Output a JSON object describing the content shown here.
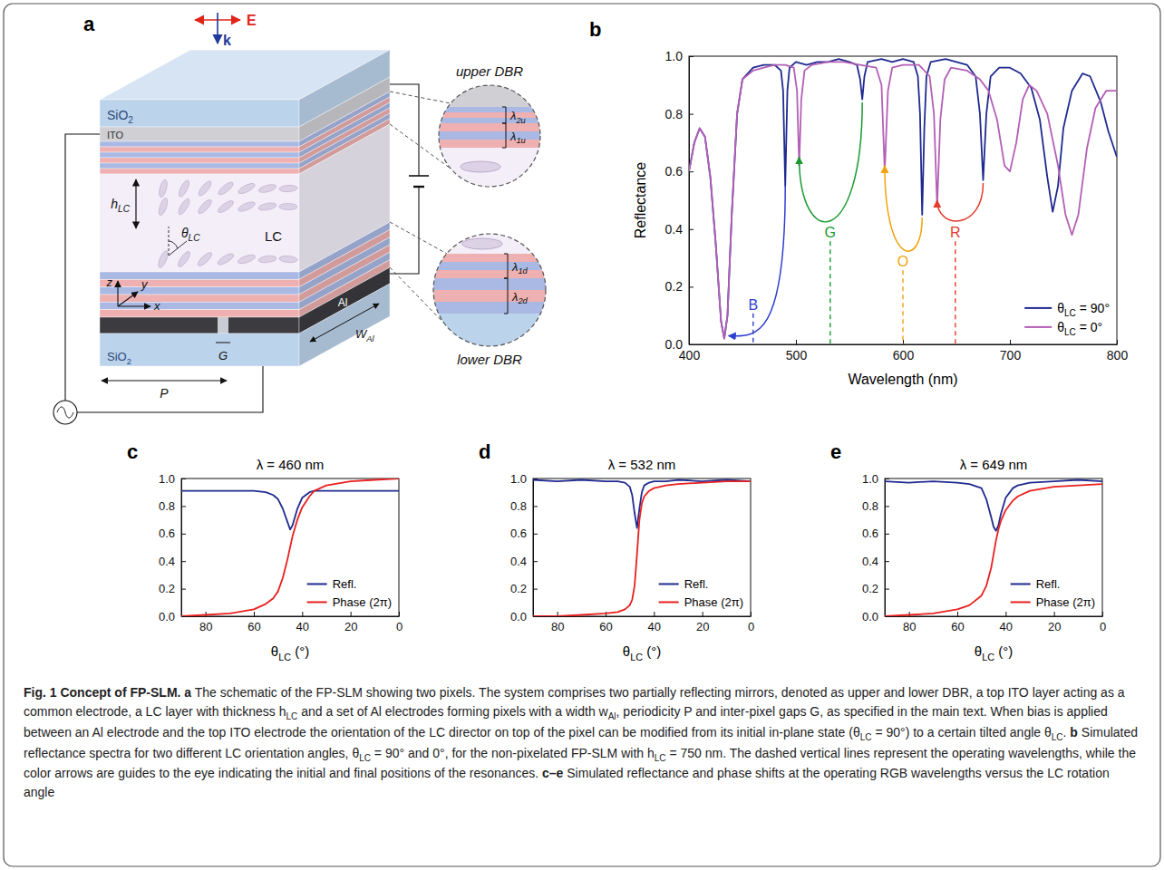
{
  "schematic": {
    "panel": "a",
    "labels": {
      "e_field": "E",
      "wave_vector": "k",
      "top_glass": "SiO2",
      "electrode_top": "ITO",
      "lc_thickness": "hLC",
      "lc_angle": "θLC",
      "lc": "LC",
      "axis_z": "z",
      "axis_y": "y",
      "axis_x": "x",
      "period": "P",
      "gap": "G",
      "electrode": "Al",
      "electrode_width": "WAl",
      "bottom_glass": "SiO2",
      "upper_dbr": "upper DBR",
      "lower_dbr": "lower DBR",
      "upper_l2": "λ2u",
      "upper_l1": "λ1u",
      "lower_l1": "λ1d",
      "lower_l2": "λ2d"
    }
  },
  "chart_data": [
    {
      "panel": "b",
      "type": "line",
      "x_label": "Wavelength (nm)",
      "y_label": "Reflectance",
      "xlim": [
        400,
        800
      ],
      "ylim": [
        0,
        1
      ],
      "xticks": [
        400,
        500,
        600,
        700,
        800
      ],
      "yticks": [
        {
          "value": 0,
          "label": "0.0"
        },
        0.2,
        0.4,
        0.6,
        0.8,
        {
          "value": 1,
          "label": "1.0"
        }
      ],
      "legend": "lower right",
      "series": [
        {
          "name": "θLC = 90°",
          "color": "#1f2a8f",
          "x": [
            400,
            405,
            410,
            415,
            420,
            425,
            430,
            433,
            436,
            440,
            445,
            450,
            460,
            470,
            480,
            486,
            488,
            490,
            492,
            494,
            500,
            510,
            520,
            530,
            540,
            550,
            557,
            560,
            562,
            564,
            567,
            580,
            590,
            600,
            610,
            614,
            616,
            618,
            620,
            622,
            626,
            640,
            650,
            660,
            668,
            672,
            675,
            678,
            682,
            690,
            700,
            710,
            720,
            728,
            735,
            740,
            745,
            750,
            758,
            768,
            775,
            785,
            792,
            800
          ],
          "values": [
            0.6,
            0.7,
            0.75,
            0.72,
            0.58,
            0.35,
            0.08,
            0.02,
            0.1,
            0.45,
            0.8,
            0.92,
            0.96,
            0.97,
            0.97,
            0.95,
            0.88,
            0.55,
            0.88,
            0.96,
            0.98,
            0.97,
            0.98,
            0.98,
            0.99,
            0.98,
            0.97,
            0.92,
            0.85,
            0.93,
            0.98,
            0.99,
            0.98,
            0.99,
            0.98,
            0.93,
            0.8,
            0.45,
            0.75,
            0.93,
            0.98,
            0.99,
            0.98,
            0.97,
            0.93,
            0.8,
            0.57,
            0.8,
            0.93,
            0.96,
            0.96,
            0.94,
            0.89,
            0.78,
            0.58,
            0.46,
            0.55,
            0.75,
            0.88,
            0.94,
            0.93,
            0.84,
            0.74,
            0.65
          ]
        },
        {
          "name": "θLC = 0°",
          "color": "#b35fb5",
          "x": [
            400,
            405,
            410,
            415,
            420,
            425,
            430,
            433,
            436,
            440,
            445,
            450,
            460,
            470,
            480,
            490,
            498,
            501,
            503,
            505,
            508,
            515,
            530,
            545,
            560,
            575,
            580,
            583,
            586,
            590,
            600,
            615,
            625,
            629,
            632,
            635,
            639,
            645,
            660,
            672,
            680,
            688,
            695,
            700,
            706,
            712,
            718,
            725,
            735,
            745,
            752,
            758,
            764,
            772,
            780,
            790,
            800
          ],
          "values": [
            0.6,
            0.7,
            0.75,
            0.72,
            0.58,
            0.35,
            0.08,
            0.02,
            0.1,
            0.45,
            0.8,
            0.92,
            0.95,
            0.96,
            0.97,
            0.97,
            0.96,
            0.88,
            0.62,
            0.85,
            0.95,
            0.97,
            0.98,
            0.98,
            0.97,
            0.96,
            0.9,
            0.6,
            0.88,
            0.96,
            0.97,
            0.97,
            0.93,
            0.8,
            0.48,
            0.78,
            0.92,
            0.96,
            0.95,
            0.92,
            0.88,
            0.78,
            0.62,
            0.6,
            0.7,
            0.85,
            0.9,
            0.88,
            0.8,
            0.62,
            0.45,
            0.38,
            0.45,
            0.68,
            0.82,
            0.88,
            0.88
          ]
        }
      ],
      "annotations": [
        {
          "text": "B",
          "x": 460,
          "y": 0.12,
          "color": "#2f3fd0",
          "from": [
            490,
            0.55
          ],
          "to": [
            437,
            0.03
          ]
        },
        {
          "text": "G",
          "x": 532,
          "y": 0.37,
          "color": "#159a2f",
          "from": [
            562,
            0.84
          ],
          "to": [
            503,
            0.65
          ]
        },
        {
          "text": "O",
          "x": 600,
          "y": 0.27,
          "color": "#f0a30a",
          "from": [
            618,
            0.44
          ],
          "to": [
            583,
            0.62
          ]
        },
        {
          "text": "R",
          "x": 649,
          "y": 0.37,
          "color": "#e53a2c",
          "from": [
            675,
            0.56
          ],
          "to": [
            632,
            0.5
          ]
        }
      ]
    },
    {
      "panel": "c",
      "type": "line",
      "title": "λ = 460 nm",
      "x_label": "θLC (°)",
      "xlim": [
        90,
        0
      ],
      "ylim": [
        0,
        1
      ],
      "xticks": [
        80,
        60,
        40,
        20,
        0
      ],
      "yticks": [
        {
          "value": 0,
          "label": "0.0"
        },
        0.2,
        0.4,
        0.6,
        0.8,
        {
          "value": 1,
          "label": "1.0"
        }
      ],
      "legend": "lower right",
      "x": [
        90,
        80,
        70,
        60,
        55,
        52,
        50,
        48,
        46,
        45,
        44,
        42,
        40,
        37,
        35,
        30,
        20,
        10,
        0
      ],
      "series": [
        {
          "name": "Refl.",
          "color": "#1f2a8f",
          "values": [
            0.91,
            0.91,
            0.91,
            0.91,
            0.9,
            0.88,
            0.85,
            0.78,
            0.68,
            0.63,
            0.66,
            0.78,
            0.86,
            0.9,
            0.91,
            0.91,
            0.91,
            0.91,
            0.91
          ]
        },
        {
          "name": "Phase (2π)",
          "color": "#e8201f",
          "values": [
            0,
            0.01,
            0.02,
            0.05,
            0.09,
            0.13,
            0.18,
            0.28,
            0.42,
            0.5,
            0.58,
            0.7,
            0.79,
            0.87,
            0.91,
            0.95,
            0.98,
            0.99,
            1.0
          ]
        }
      ]
    },
    {
      "panel": "d",
      "type": "line",
      "title": "λ = 532 nm",
      "x_label": "θLC (°)",
      "xlim": [
        90,
        0
      ],
      "ylim": [
        0,
        1
      ],
      "xticks": [
        80,
        60,
        40,
        20,
        0
      ],
      "yticks": [
        {
          "value": 0,
          "label": "0.0"
        },
        0.2,
        0.4,
        0.6,
        0.8,
        {
          "value": 1,
          "label": "1.0"
        }
      ],
      "legend": "lower right",
      "x": [
        90,
        80,
        70,
        60,
        55,
        52,
        50,
        49,
        48,
        47,
        46,
        45,
        44,
        42,
        40,
        35,
        30,
        20,
        10,
        0
      ],
      "series": [
        {
          "name": "Refl.",
          "color": "#1f2a8f",
          "values": [
            0.99,
            0.98,
            0.99,
            0.98,
            0.98,
            0.97,
            0.94,
            0.88,
            0.75,
            0.64,
            0.78,
            0.9,
            0.95,
            0.97,
            0.98,
            0.98,
            0.99,
            0.98,
            0.99,
            0.98
          ]
        },
        {
          "name": "Phase (2π)",
          "color": "#e8201f",
          "values": [
            0,
            0,
            0.01,
            0.02,
            0.03,
            0.05,
            0.08,
            0.12,
            0.22,
            0.45,
            0.7,
            0.82,
            0.87,
            0.91,
            0.93,
            0.95,
            0.96,
            0.97,
            0.98,
            0.98
          ]
        }
      ]
    },
    {
      "panel": "e",
      "type": "line",
      "title": "λ = 649 nm",
      "x_label": "θLC (°)",
      "xlim": [
        90,
        0
      ],
      "ylim": [
        0,
        1
      ],
      "xticks": [
        80,
        60,
        40,
        20,
        0
      ],
      "yticks": [
        {
          "value": 0,
          "label": "0.0"
        },
        0.2,
        0.4,
        0.6,
        0.8,
        {
          "value": 1,
          "label": "1.0"
        }
      ],
      "legend": "lower right",
      "x": [
        90,
        80,
        70,
        60,
        55,
        50,
        48,
        46,
        45,
        44,
        43,
        42,
        40,
        37,
        35,
        30,
        20,
        10,
        0
      ],
      "series": [
        {
          "name": "Refl.",
          "color": "#1f2a8f",
          "values": [
            0.98,
            0.97,
            0.98,
            0.97,
            0.96,
            0.93,
            0.85,
            0.72,
            0.65,
            0.62,
            0.66,
            0.74,
            0.86,
            0.93,
            0.95,
            0.97,
            0.98,
            0.99,
            0.98
          ]
        },
        {
          "name": "Phase (2π)",
          "color": "#e8201f",
          "values": [
            0,
            0.01,
            0.02,
            0.05,
            0.08,
            0.15,
            0.22,
            0.35,
            0.45,
            0.55,
            0.63,
            0.69,
            0.77,
            0.84,
            0.87,
            0.91,
            0.94,
            0.95,
            0.96
          ]
        }
      ]
    }
  ],
  "caption": {
    "title": "Fig. 1 Concept of FP-SLM.",
    "parts": [
      {
        "label": "a",
        "text": "The schematic of the FP-SLM showing two pixels. The system comprises two partially reflecting mirrors, denoted as upper and lower DBR, a top ITO layer acting as a common electrode, a LC layer with thickness hLC and a set of Al electrodes forming pixels with a width wAl, periodicity P and inter-pixel gaps G, as specified in the main text. When bias is applied between an Al electrode and the top ITO electrode the orientation of the LC director on top of the pixel can be modified from its initial in-plane state (θLC = 90°) to a certain tilted angle θLC."
      },
      {
        "label": "b",
        "text": "Simulated reflectance spectra for two different LC orientation angles, θLC = 90° and 0°, for the non-pixelated FP-SLM with hLC = 750 nm. The dashed vertical lines represent the operating wavelengths, while the color arrows are guides to the eye indicating the initial and final positions of the resonances."
      },
      {
        "label": "c–e",
        "text": "Simulated reflectance and phase shifts at the operating RGB wavelengths versus the LC rotation angle"
      }
    ]
  }
}
